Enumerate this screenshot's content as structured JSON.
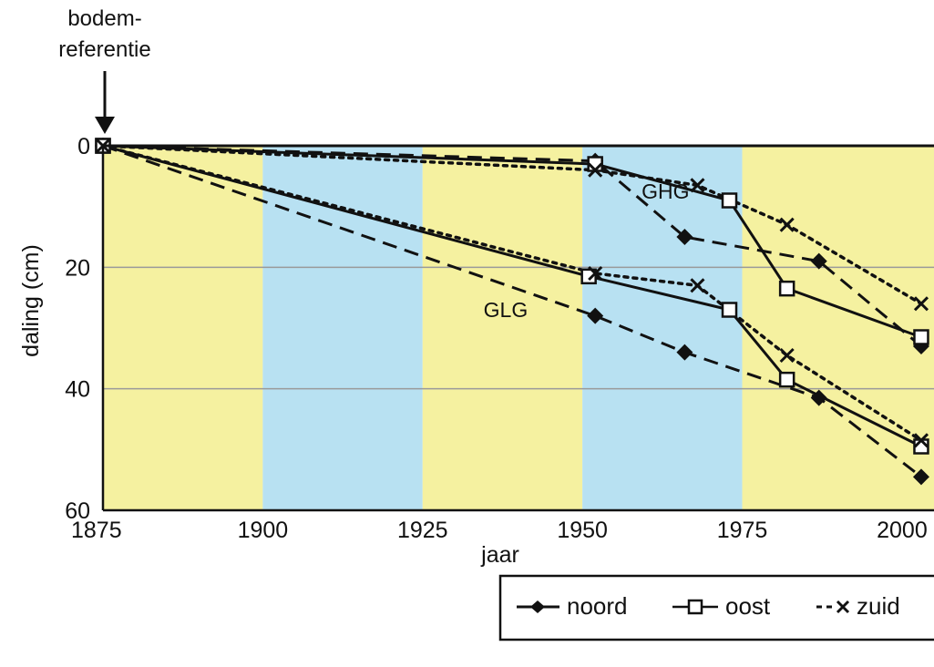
{
  "chart_data": {
    "type": "line",
    "annotation": {
      "line1": "bodem-",
      "line2": "referentie"
    },
    "xlabel": "jaar",
    "ylabel": "daling (cm)",
    "xlim": [
      1875,
      2005
    ],
    "ylim": [
      0,
      60
    ],
    "y_inverted": true,
    "x_ticks": [
      "1875",
      "1900",
      "1925",
      "1950",
      "1975",
      "2000"
    ],
    "y_ticks": [
      "0",
      "20",
      "40",
      "60"
    ],
    "background_bands": [
      {
        "from": 1875,
        "to": 1900,
        "color": "#f5f1a0"
      },
      {
        "from": 1900,
        "to": 1925,
        "color": "#b8e1f2"
      },
      {
        "from": 1925,
        "to": 1950,
        "color": "#f5f1a0"
      },
      {
        "from": 1950,
        "to": 1975,
        "color": "#b8e1f2"
      },
      {
        "from": 1975,
        "to": 2005,
        "color": "#f5f1a0"
      }
    ],
    "group_labels": [
      {
        "text": "GHG",
        "x": 1963,
        "y": 7.5
      },
      {
        "text": "GLG",
        "x": 1938,
        "y": 27
      }
    ],
    "legend": {
      "position": "bottom-right",
      "items": [
        "noord",
        "oost",
        "zuid"
      ]
    },
    "series": [
      {
        "name": "noord",
        "group": "GHG",
        "style": "dashed",
        "marker": "diamond",
        "x": [
          1875,
          1952,
          1966,
          1987,
          2003
        ],
        "y": [
          0,
          2.5,
          15,
          19,
          33
        ]
      },
      {
        "name": "oost",
        "group": "GHG",
        "style": "solid",
        "marker": "square",
        "x": [
          1875,
          1952,
          1973,
          1982,
          2003
        ],
        "y": [
          0,
          3,
          9,
          23.5,
          31.5
        ]
      },
      {
        "name": "zuid",
        "group": "GHG",
        "style": "dotted",
        "marker": "x",
        "x": [
          1875,
          1952,
          1968,
          1982,
          2003
        ],
        "y": [
          0,
          4,
          6.5,
          13,
          26
        ]
      },
      {
        "name": "noord",
        "group": "GLG",
        "style": "dashed",
        "marker": "diamond",
        "x": [
          1875,
          1952,
          1966,
          1987,
          2003
        ],
        "y": [
          0,
          28,
          34,
          41.5,
          54.5
        ]
      },
      {
        "name": "oost",
        "group": "GLG",
        "style": "solid",
        "marker": "square",
        "x": [
          1875,
          1951,
          1973,
          1982,
          2003
        ],
        "y": [
          0,
          21.5,
          27,
          38.5,
          49.5
        ]
      },
      {
        "name": "zuid",
        "group": "GLG",
        "style": "dotted",
        "marker": "x",
        "x": [
          1875,
          1952,
          1968,
          1982,
          2003
        ],
        "y": [
          0,
          21,
          23,
          34.5,
          48.5
        ]
      }
    ]
  }
}
